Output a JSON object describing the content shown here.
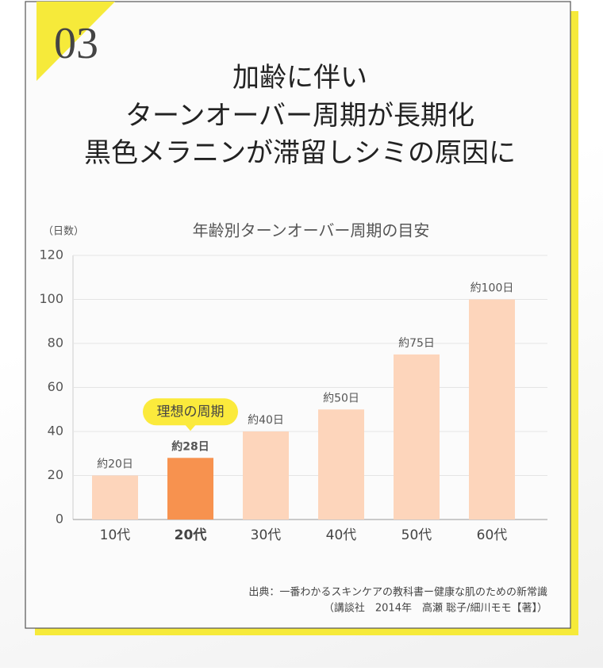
{
  "badge": "03",
  "headline": [
    "加齢に伴い",
    "ターンオーバー周期が長期化",
    "黒色メラニンが滞留しシミの原因に"
  ],
  "chart_data": {
    "type": "bar",
    "title": "年齢別ターンオーバー周期の目安",
    "y_label": "（日数）",
    "categories": [
      "10代",
      "20代",
      "30代",
      "40代",
      "50代",
      "60代"
    ],
    "values": [
      20,
      28,
      40,
      50,
      75,
      100
    ],
    "value_labels": [
      "約20日",
      "約28日",
      "約40日",
      "約50日",
      "約75日",
      "約100日"
    ],
    "colors": [
      "#fdd5bb",
      "#f7924f",
      "#fdd5bb",
      "#fdd5bb",
      "#fdd5bb",
      "#fdd5bb"
    ],
    "ylim": [
      0,
      120
    ],
    "yticks": [
      0,
      20,
      40,
      60,
      80,
      100,
      120
    ],
    "grid": true,
    "callout": {
      "text": "理想の周期",
      "category_index": 1,
      "color": "#fbea3c"
    }
  },
  "source": [
    "出典：一番わかるスキンケアの教科書ー健康な肌のための新常識",
    "（講談社　2014年　高瀬 聡子/細川モモ【著】）"
  ]
}
